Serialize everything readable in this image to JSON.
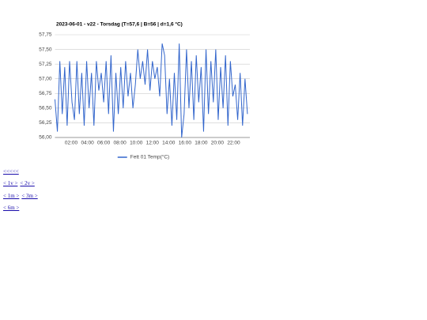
{
  "chart_data": {
    "type": "line",
    "title": "2023-06-01 - v22 - Torsdag (T=57,6 | B=56 | d=1,6 °C)",
    "x": [
      0.0,
      0.3,
      0.6,
      0.9,
      1.2,
      1.5,
      1.8,
      2.1,
      2.4,
      2.7,
      3.0,
      3.3,
      3.6,
      3.9,
      4.2,
      4.5,
      4.8,
      5.1,
      5.4,
      5.7,
      6.0,
      6.3,
      6.6,
      6.9,
      7.2,
      7.5,
      7.8,
      8.1,
      8.4,
      8.7,
      9.0,
      9.3,
      9.6,
      9.9,
      10.2,
      10.5,
      10.8,
      11.1,
      11.4,
      11.7,
      12.0,
      12.3,
      12.6,
      12.9,
      13.2,
      13.5,
      13.8,
      14.1,
      14.4,
      14.7,
      15.0,
      15.3,
      15.6,
      15.9,
      16.2,
      16.5,
      16.8,
      17.1,
      17.4,
      17.7,
      18.0,
      18.3,
      18.6,
      18.9,
      19.2,
      19.5,
      19.8,
      20.1,
      20.4,
      20.7,
      21.0,
      21.3,
      21.6,
      21.9,
      22.2,
      22.5,
      22.8,
      23.1,
      23.4,
      23.7
    ],
    "series": [
      {
        "name": "Fett 01 Temp(°C)",
        "color": "#3366cc",
        "values": [
          56.65,
          56.1,
          57.3,
          56.4,
          57.2,
          56.2,
          57.3,
          56.6,
          56.3,
          57.3,
          56.4,
          57.1,
          56.2,
          57.3,
          56.5,
          57.1,
          56.2,
          57.3,
          56.8,
          57.1,
          56.6,
          57.3,
          56.4,
          57.4,
          56.1,
          57.1,
          56.4,
          57.2,
          56.5,
          57.3,
          56.7,
          57.1,
          56.5,
          56.9,
          57.5,
          57.0,
          57.3,
          56.9,
          57.5,
          56.8,
          57.3,
          57.0,
          57.2,
          56.7,
          57.6,
          57.4,
          56.4,
          57.0,
          56.2,
          57.1,
          56.3,
          57.6,
          56.0,
          56.4,
          57.5,
          56.5,
          57.3,
          56.3,
          57.4,
          56.6,
          57.2,
          56.1,
          57.5,
          56.4,
          57.3,
          56.6,
          57.5,
          56.3,
          57.2,
          56.5,
          57.4,
          56.2,
          57.3,
          56.7,
          56.9,
          56.3,
          57.1,
          56.2,
          57.0,
          56.4
        ]
      }
    ],
    "xlim": [
      0,
      24
    ],
    "xticks": [
      {
        "value": 2,
        "label": "02:00"
      },
      {
        "value": 4,
        "label": "04:00"
      },
      {
        "value": 6,
        "label": "06:00"
      },
      {
        "value": 8,
        "label": "08:00"
      },
      {
        "value": 10,
        "label": "10:00"
      },
      {
        "value": 12,
        "label": "12:00"
      },
      {
        "value": 14,
        "label": "14:00"
      },
      {
        "value": 16,
        "label": "16:00"
      },
      {
        "value": 18,
        "label": "18:00"
      },
      {
        "value": 20,
        "label": "20:00"
      },
      {
        "value": 22,
        "label": "22:00"
      }
    ],
    "ylim": [
      56,
      57.75
    ],
    "yticks": [
      {
        "value": 56,
        "label": "56,00"
      },
      {
        "value": 56.25,
        "label": "56,25"
      },
      {
        "value": 56.5,
        "label": "56,50"
      },
      {
        "value": 56.75,
        "label": "56,75"
      },
      {
        "value": 57,
        "label": "57,00"
      },
      {
        "value": 57.25,
        "label": "57,25"
      },
      {
        "value": 57.5,
        "label": "57,50"
      },
      {
        "value": 57.75,
        "label": "57,75"
      }
    ],
    "grid": true,
    "legend": "bottom"
  },
  "nav": [
    [
      "<<<<<"
    ],
    [
      "< 1v >",
      "< 2v >"
    ],
    [
      "< 1m >",
      "< 3m >"
    ],
    [
      "< 6m >"
    ]
  ]
}
